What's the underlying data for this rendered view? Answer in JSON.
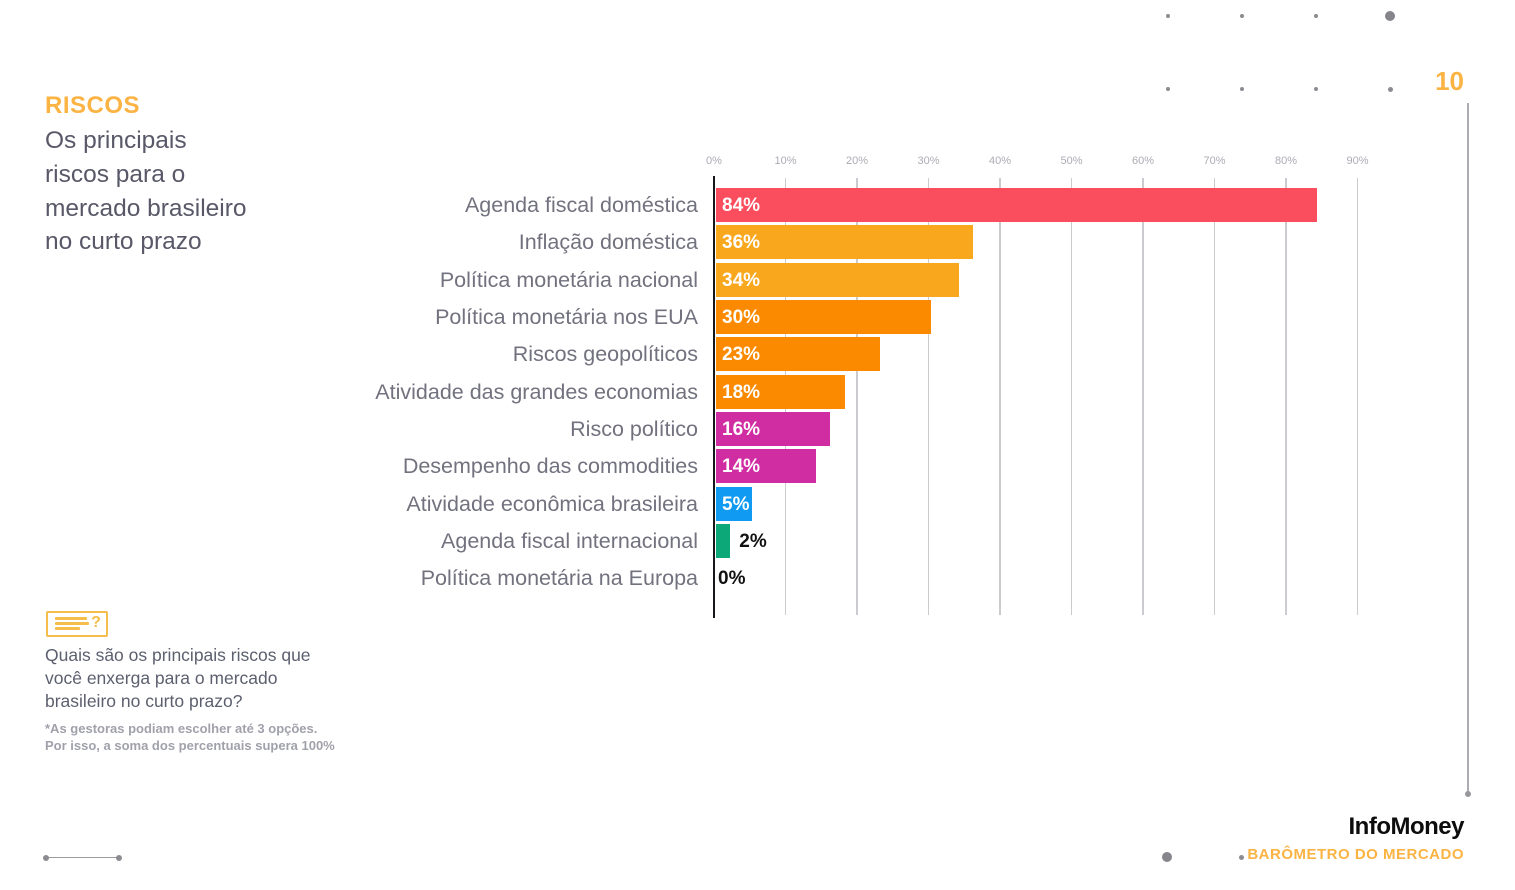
{
  "slide": {
    "page_number": "10",
    "title": "RISCOS",
    "subtitle_lines": [
      "Os principais",
      "riscos para o",
      "mercado brasileiro",
      "no curto prazo"
    ]
  },
  "chart_data": {
    "type": "bar",
    "orientation": "horizontal",
    "categories": [
      "Agenda fiscal doméstica",
      "Inflação doméstica",
      "Política monetária nacional",
      "Política monetária nos EUA",
      "Riscos geopolíticos",
      "Atividade das grandes economias",
      "Risco político",
      "Desempenho das commodities",
      "Atividade econômica brasileira",
      "Agenda fiscal internacional",
      "Política monetária na Europa"
    ],
    "values": [
      84,
      36,
      34,
      30,
      23,
      18,
      16,
      14,
      5,
      2,
      0
    ],
    "value_labels": [
      "84%",
      "36%",
      "34%",
      "30%",
      "23%",
      "18%",
      "16%",
      "14%",
      "5%",
      "2%",
      "0%"
    ],
    "bar_colors": [
      "#FA4D5D",
      "#F9A71D",
      "#F9A71D",
      "#FB8A00",
      "#FB8A00",
      "#FB8A00",
      "#D12DA3",
      "#D12DA3",
      "#119AF1",
      "#0CA878",
      "none"
    ],
    "x_ticks": [
      "0%",
      "10%",
      "20%",
      "30%",
      "40%",
      "50%",
      "60%",
      "70%",
      "80%",
      "90%"
    ],
    "xlim": [
      0,
      100
    ],
    "grid": true,
    "legend": false,
    "value_label_inside_min": 5
  },
  "question": {
    "lines": [
      "Quais são os principais riscos que",
      "você enxerga para o mercado",
      "brasileiro no curto prazo?"
    ],
    "footnote_lines": [
      "*As gestoras podiam escolher até 3 opções.",
      "Por isso, a soma dos percentuais supera 100%"
    ]
  },
  "footer": {
    "brand": "InfoMoney",
    "tagline": "BARÔMETRO DO MERCADO"
  },
  "theme": {
    "accent": "#FBB344",
    "icon_gold": "#F5BE4C",
    "label_gray": "#72727F",
    "subtitle_gray": "#585868",
    "tick_gray": "#ACACB4",
    "footnote_gray": "#A0A1AB",
    "axis_black": "#17171B",
    "gridline_gray": "#CBCBD0",
    "value_label_light": "#FFFFFF",
    "value_label_dark": "#111111"
  }
}
